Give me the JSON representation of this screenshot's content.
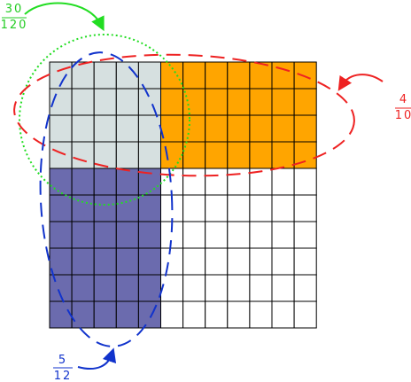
{
  "annotations": [
    {
      "numerator": "30",
      "denominator": "120"
    },
    {
      "numerator": "4",
      "denominator": "10"
    },
    {
      "numerator": "5",
      "denominator": "12"
    }
  ]
}
